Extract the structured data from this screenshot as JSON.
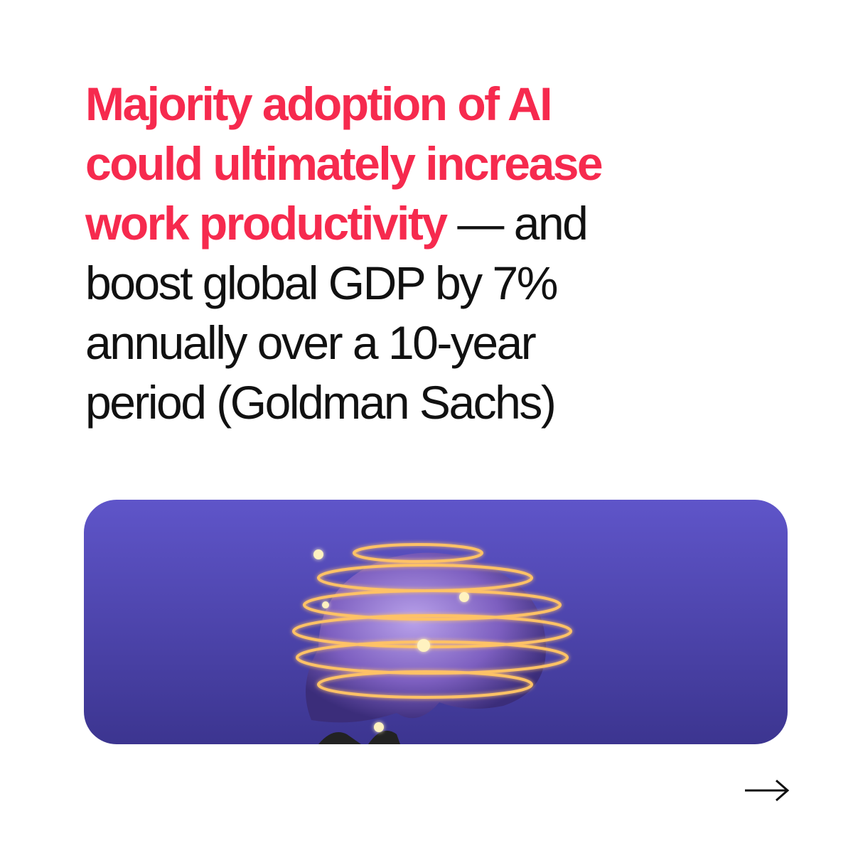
{
  "headline": {
    "highlight": [
      "Majority adoption of AI",
      "could ultimately increase",
      "work productivity"
    ],
    "body": [
      "— and",
      "boost global GDP by 7%",
      "annually over a 10-year",
      "period (Goldman Sachs)"
    ]
  }
}
